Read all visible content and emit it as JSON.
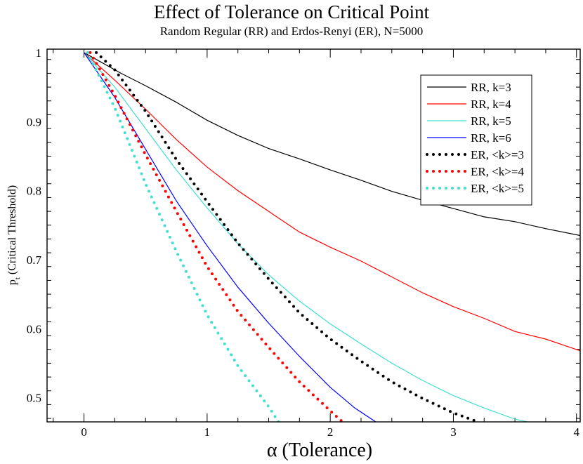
{
  "chart_data": {
    "type": "line",
    "title": "Effect of Tolerance on Critical Point",
    "subtitle": "Random Regular (RR) and Erdos-Renyi (ER), N=5000",
    "xlabel_symbol": "α",
    "xlabel_text": " (Tolerance)",
    "ylabel_symbol": "p",
    "ylabel_subscript": "t",
    "ylabel_text": " (Critical Threshold)",
    "xlim": [
      -0.3,
      4.03
    ],
    "ylim": [
      0.465,
      1.005
    ],
    "x_ticks": [
      0,
      1,
      2,
      3,
      4
    ],
    "x_tick_labels": [
      "0",
      "1",
      "2",
      "3",
      "4"
    ],
    "y_ticks": [
      0.5,
      0.6,
      0.7,
      0.8,
      0.9,
      1.0
    ],
    "y_tick_labels": [
      "0.5",
      "0.6",
      "0.7",
      "0.8",
      "0.9",
      "1"
    ],
    "legend_position": "top-right",
    "series": [
      {
        "name": "RR, k=3",
        "color": "#000000",
        "style": "solid",
        "x": [
          0,
          0.1,
          0.3,
          0.5,
          0.75,
          1.0,
          1.25,
          1.5,
          1.75,
          2.0,
          2.25,
          2.5,
          2.75,
          3.0,
          3.25,
          3.5,
          3.75,
          4.03
        ],
        "y": [
          1.0,
          0.99,
          0.97,
          0.952,
          0.928,
          0.902,
          0.88,
          0.861,
          0.846,
          0.83,
          0.815,
          0.799,
          0.786,
          0.774,
          0.762,
          0.755,
          0.745,
          0.735
        ]
      },
      {
        "name": "RR, k=4",
        "color": "#ff0000",
        "style": "solid",
        "x": [
          0,
          0.25,
          0.5,
          0.75,
          1.0,
          1.25,
          1.5,
          1.75,
          2.0,
          2.25,
          2.5,
          2.75,
          3.0,
          3.25,
          3.5,
          3.75,
          4.03
        ],
        "y": [
          1.0,
          0.96,
          0.918,
          0.874,
          0.834,
          0.8,
          0.77,
          0.74,
          0.718,
          0.698,
          0.675,
          0.652,
          0.632,
          0.615,
          0.596,
          0.585,
          0.568
        ]
      },
      {
        "name": "RR, k=5",
        "color": "#40e0d0",
        "style": "solid",
        "x": [
          0,
          0.25,
          0.5,
          0.75,
          1.0,
          1.25,
          1.5,
          1.75,
          2.0,
          2.25,
          2.5,
          2.75,
          3.0,
          3.25,
          3.5,
          3.6
        ],
        "y": [
          1.0,
          0.95,
          0.89,
          0.83,
          0.775,
          0.723,
          0.678,
          0.64,
          0.607,
          0.578,
          0.55,
          0.525,
          0.503,
          0.485,
          0.469,
          0.465
        ]
      },
      {
        "name": "RR, k=6",
        "color": "#0000ff",
        "style": "solid",
        "x": [
          0,
          0.25,
          0.5,
          0.75,
          1.0,
          1.25,
          1.5,
          1.75,
          2.0,
          2.2,
          2.37
        ],
        "y": [
          1.0,
          0.935,
          0.86,
          0.785,
          0.72,
          0.66,
          0.608,
          0.56,
          0.515,
          0.485,
          0.465
        ]
      },
      {
        "name": "ER, <k>=3",
        "color": "#000000",
        "style": "dotted",
        "x": [
          0.1,
          0.25,
          0.5,
          0.75,
          1.0,
          1.25,
          1.5,
          1.75,
          2.0,
          2.25,
          2.5,
          2.75,
          3.0,
          3.2
        ],
        "y": [
          1.0,
          0.975,
          0.915,
          0.845,
          0.784,
          0.724,
          0.672,
          0.623,
          0.585,
          0.553,
          0.523,
          0.499,
          0.478,
          0.465
        ]
      },
      {
        "name": "ER, <k>=4",
        "color": "#ff0000",
        "style": "dotted",
        "x": [
          0.05,
          0.25,
          0.5,
          0.75,
          1.0,
          1.25,
          1.5,
          1.75,
          2.0,
          2.1
        ],
        "y": [
          1.0,
          0.938,
          0.852,
          0.77,
          0.69,
          0.625,
          0.573,
          0.523,
          0.481,
          0.465
        ]
      },
      {
        "name": "ER, <k>=5",
        "color": "#40e0d0",
        "style": "dotted",
        "x": [
          0.03,
          0.25,
          0.5,
          0.75,
          1.0,
          1.25,
          1.5,
          1.58
        ],
        "y": [
          1.0,
          0.92,
          0.81,
          0.712,
          0.62,
          0.546,
          0.487,
          0.465
        ]
      }
    ]
  }
}
